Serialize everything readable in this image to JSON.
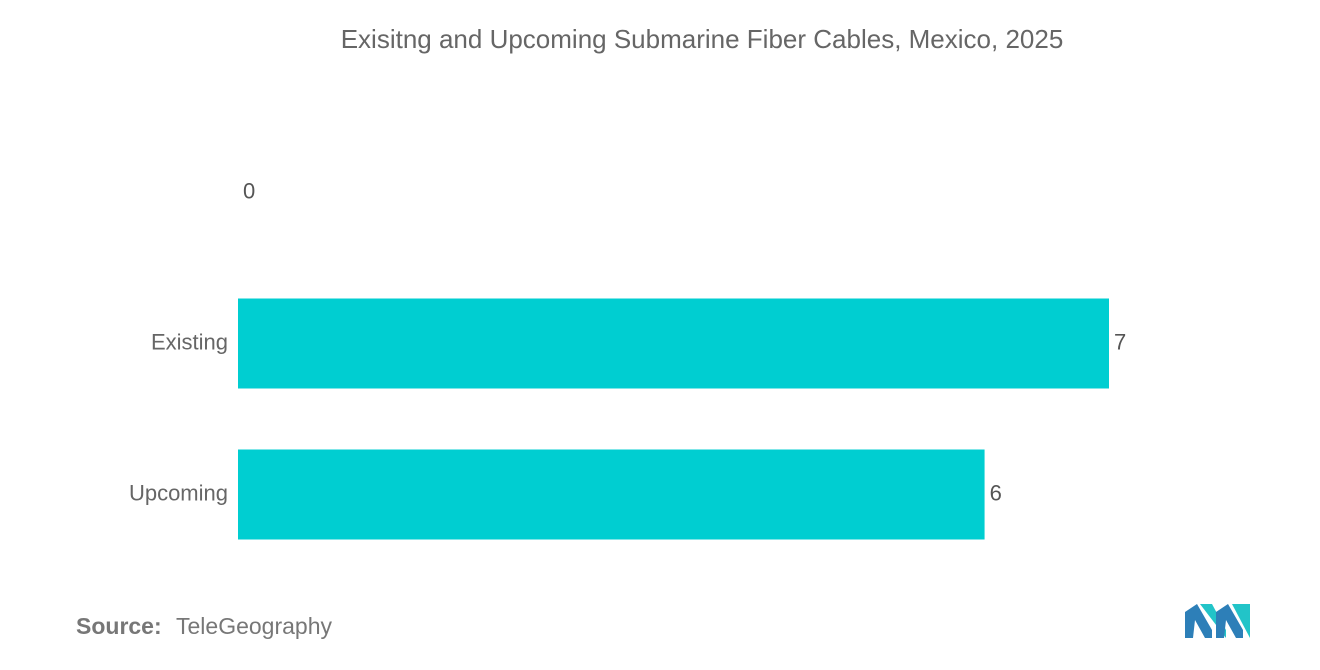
{
  "chart_data": {
    "type": "bar",
    "orientation": "horizontal",
    "title": "Exisitng and Upcoming Submarine Fiber Cables, Mexico, 2025",
    "categories": [
      null,
      "Existing",
      "Upcoming"
    ],
    "values": [
      0,
      7,
      6
    ],
    "color": "#00ced1"
  },
  "source_label": "Source:",
  "source": "TeleGeography"
}
